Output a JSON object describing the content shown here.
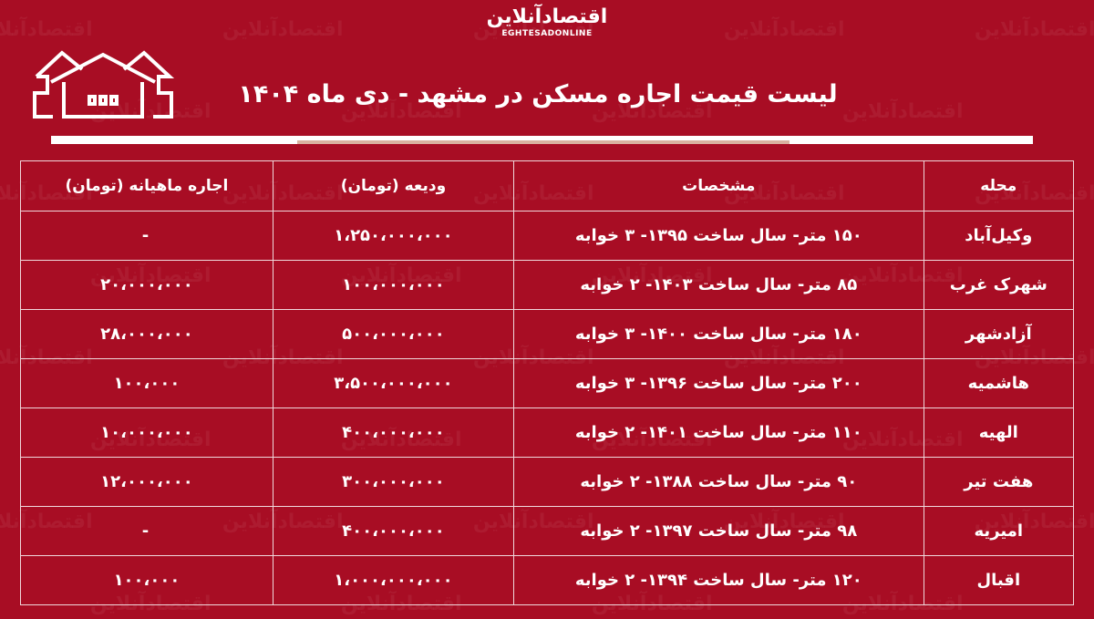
{
  "brand": {
    "logo_fa": "اقتصادآنلاین",
    "logo_en": "EGHTESADONLINE",
    "watermark": "اقتصادآنلاین"
  },
  "title": "لیست قیمت اجاره مسکن در مشهد - دی ماه ۱۴۰۴",
  "colors": {
    "background": "#a80d24",
    "text": "#ffffff",
    "accent_bar": "#d9b2a0"
  },
  "table": {
    "headers": [
      "محله",
      "مشخصات",
      "ودیعه (تومان)",
      "اجاره ماهیانه (تومان)"
    ],
    "rows": [
      {
        "area": "وکیل‌آباد",
        "specs": "۱۵۰ متر- سال ساخت ۱۳۹۵- ۳ خوابه",
        "deposit": "۱،۲۵۰،۰۰۰،۰۰۰",
        "rent": "-"
      },
      {
        "area": "شهرک غرب",
        "specs": "۸۵ متر- سال ساخت ۱۴۰۳- ۲ خوابه",
        "deposit": "۱۰۰،۰۰۰،۰۰۰",
        "rent": "۲۰،۰۰۰،۰۰۰"
      },
      {
        "area": "آزادشهر",
        "specs": "۱۸۰ متر- سال ساخت ۱۴۰۰- ۳ خوابه",
        "deposit": "۵۰۰،۰۰۰،۰۰۰",
        "rent": "۲۸،۰۰۰،۰۰۰"
      },
      {
        "area": "هاشمیه",
        "specs": "۲۰۰ متر- سال ساخت ۱۳۹۶- ۳ خوابه",
        "deposit": "۳،۵۰۰،۰۰۰،۰۰۰",
        "rent": "۱۰۰،۰۰۰"
      },
      {
        "area": "الهیه",
        "specs": "۱۱۰ متر- سال ساخت ۱۴۰۱- ۲ خوابه",
        "deposit": "۴۰۰،۰۰۰،۰۰۰",
        "rent": "۱۰،۰۰۰،۰۰۰"
      },
      {
        "area": "هفت تیر",
        "specs": "۹۰ متر- سال ساخت ۱۳۸۸- ۲ خوابه",
        "deposit": "۳۰۰،۰۰۰،۰۰۰",
        "rent": "۱۲،۰۰۰،۰۰۰"
      },
      {
        "area": "امیریه",
        "specs": "۹۸ متر- سال ساخت ۱۳۹۷- ۲ خوابه",
        "deposit": "۴۰۰،۰۰۰،۰۰۰",
        "rent": "-"
      },
      {
        "area": "اقبال",
        "specs": "۱۲۰ متر- سال ساخت ۱۳۹۴- ۲ خوابه",
        "deposit": "۱،۰۰۰،۰۰۰،۰۰۰",
        "rent": "۱۰۰،۰۰۰"
      }
    ]
  }
}
